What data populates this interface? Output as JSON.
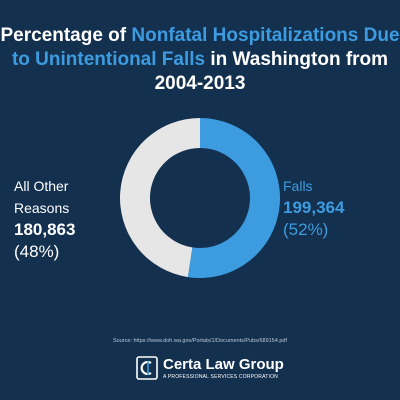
{
  "title": {
    "part1": "Percentage of ",
    "highlight": "Nonfatal Hospitalizations Due to Unintentional Falls",
    "part2": " in Washington from 2004-2013"
  },
  "chart_data": {
    "type": "pie",
    "title": "Percentage of Nonfatal Hospitalizations Due to Unintentional Falls in Washington from 2004-2013",
    "slices": [
      {
        "label": "Falls",
        "value": 199364,
        "value_text": "199,364",
        "percent_text": "(52%)",
        "color": "#3d9be0"
      },
      {
        "label": "All Other Reasons",
        "value": 180863,
        "value_text": "180,863",
        "percent_text": "(48%)",
        "color": "#e6e6e6"
      }
    ]
  },
  "source": "Source: https://www.doh.wa.gov/Portals/1/Documents/Pubs/689154.pdf",
  "logo": {
    "name": "Certa Law Group",
    "tagline": "A PROFESSIONAL SERVICES CORPORATION",
    "icon": "certa-logo-icon"
  },
  "colors": {
    "background": "#13304f",
    "accent": "#3d9be0",
    "other": "#e6e6e6"
  }
}
